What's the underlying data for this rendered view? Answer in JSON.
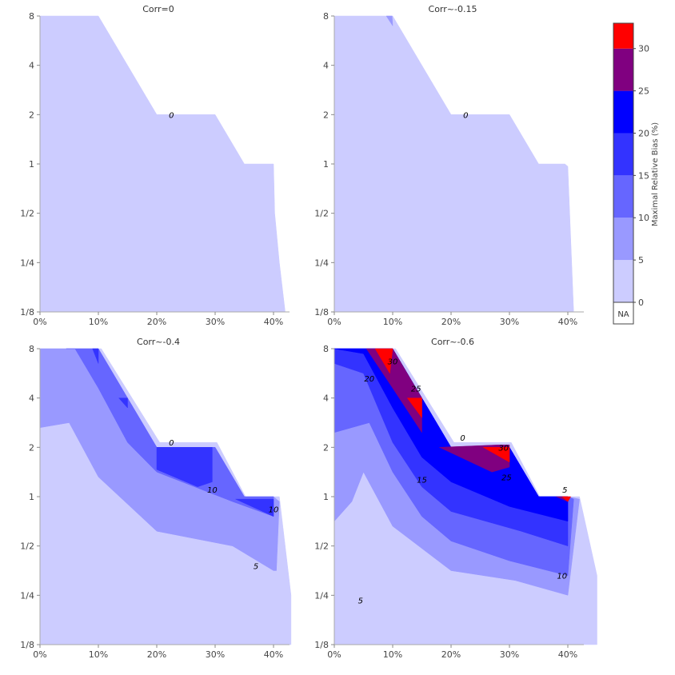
{
  "chart_data": {
    "type": "contour",
    "colorbar": {
      "title": "Maximal Relative Bias (%)",
      "ticks": [
        "0",
        "5",
        "10",
        "15",
        "20",
        "25",
        "30"
      ],
      "levels": [
        0,
        5,
        10,
        15,
        20,
        25,
        30,
        33
      ],
      "colors": [
        "#ccccff",
        "#9999ff",
        "#6666ff",
        "#3333ff",
        "#0000ff",
        "#800080",
        "#ff0000"
      ],
      "na_label": "NA",
      "na_color": "#ffffff"
    },
    "x_ticks": [
      "0%",
      "10%",
      "20%",
      "30%",
      "40%"
    ],
    "x_tick_values": [
      0,
      10,
      20,
      30,
      40
    ],
    "y_ticks": [
      "1/8",
      "1/4",
      "1/2",
      "1",
      "2",
      "4",
      "8"
    ],
    "y_tick_values": [
      -3,
      -2,
      -1,
      0,
      1,
      2,
      3
    ],
    "panels": [
      {
        "title": "Corr=0",
        "regions": [
          {
            "level": 0,
            "points": [
              [
                0,
                3
              ],
              [
                10,
                3
              ],
              [
                20,
                1
              ],
              [
                30,
                1
              ],
              [
                35,
                0
              ],
              [
                40,
                0
              ],
              [
                40.2,
                -1
              ],
              [
                41,
                -2
              ],
              [
                42,
                -3
              ],
              [
                0,
                -3
              ]
            ]
          }
        ],
        "labels": [
          {
            "text": "0",
            "x": 22.5,
            "y": 1
          }
        ]
      },
      {
        "title": "Corr~-0.15",
        "regions": [
          {
            "level": 0,
            "points": [
              [
                0,
                3
              ],
              [
                10,
                3
              ],
              [
                20,
                1
              ],
              [
                30,
                1
              ],
              [
                35,
                0
              ],
              [
                39.5,
                0
              ],
              [
                40,
                -0.05
              ],
              [
                41,
                -3
              ],
              [
                0,
                -3
              ]
            ]
          },
          {
            "level": 1,
            "points": [
              [
                8.9,
                3
              ],
              [
                9.9,
                3
              ],
              [
                10,
                2.8
              ]
            ]
          }
        ],
        "labels": [
          {
            "text": "0",
            "x": 22.5,
            "y": 1
          }
        ]
      },
      {
        "title": "Corr~-0.4",
        "regions": [
          {
            "level": 0,
            "points": [
              [
                0,
                3
              ],
              [
                10.5,
                3
              ],
              [
                20.5,
                1.1
              ],
              [
                30.3,
                1.1
              ],
              [
                35.2,
                0
              ],
              [
                41,
                0
              ],
              [
                43,
                -2
              ],
              [
                43,
                -3
              ],
              [
                0,
                -3
              ]
            ]
          },
          {
            "level": 1,
            "points": [
              [
                0,
                3
              ],
              [
                10,
                3
              ],
              [
                20,
                1
              ],
              [
                30,
                1
              ],
              [
                35,
                0
              ],
              [
                40,
                0
              ],
              [
                41,
                -0.1
              ],
              [
                40.5,
                -1.5
              ],
              [
                40,
                -1.5
              ],
              [
                33,
                -1
              ],
              [
                20,
                -0.7
              ],
              [
                10,
                0.4
              ],
              [
                5,
                1.5
              ],
              [
                0,
                1.4
              ]
            ]
          },
          {
            "level": 2,
            "points": [
              [
                4.5,
                3
              ],
              [
                10,
                3
              ],
              [
                20,
                1
              ],
              [
                30,
                1
              ],
              [
                35,
                0
              ],
              [
                40,
                0
              ],
              [
                40,
                -0.4
              ],
              [
                33,
                -0.1
              ],
              [
                20,
                0.5
              ],
              [
                15,
                1.1
              ],
              [
                10,
                2.2
              ],
              [
                6,
                3
              ]
            ]
          },
          {
            "level": 3,
            "points": [
              [
                9,
                3
              ],
              [
                10,
                2.7
              ],
              [
                10,
                3
              ]
            ]
          },
          {
            "level": 3,
            "points": [
              [
                13.5,
                2
              ],
              [
                15,
                1.8
              ],
              [
                15,
                2
              ]
            ]
          },
          {
            "level": 3,
            "points": [
              [
                20,
                1
              ],
              [
                29.5,
                1
              ],
              [
                29.5,
                0.3
              ],
              [
                27,
                0.2
              ],
              [
                20,
                0.55
              ]
            ]
          },
          {
            "level": 3,
            "points": [
              [
                33.5,
                -0.05
              ],
              [
                40,
                -0.05
              ],
              [
                40,
                -0.4
              ]
            ]
          }
        ],
        "labels": [
          {
            "text": "0",
            "x": 22.5,
            "y": 1.1
          },
          {
            "text": "10",
            "x": 29.5,
            "y": 0.15
          },
          {
            "text": "10",
            "x": 40,
            "y": -0.25
          },
          {
            "text": "5",
            "x": 37,
            "y": -1.4
          }
        ]
      },
      {
        "title": "Corr~-0.6",
        "regions": [
          {
            "level": 0,
            "points": [
              [
                0,
                3
              ],
              [
                10.5,
                3
              ],
              [
                20.5,
                1.1
              ],
              [
                30.3,
                1.1
              ],
              [
                35.2,
                0
              ],
              [
                42,
                0
              ],
              [
                45,
                -1.6
              ],
              [
                45,
                -3
              ],
              [
                0,
                -3
              ]
            ]
          },
          {
            "level": 1,
            "points": [
              [
                0,
                3
              ],
              [
                10,
                3
              ],
              [
                20,
                1
              ],
              [
                30,
                1
              ],
              [
                35,
                0
              ],
              [
                40,
                0
              ],
              [
                42,
                -0.05
              ],
              [
                40,
                -2
              ],
              [
                31,
                -1.7
              ],
              [
                20,
                -1.5
              ],
              [
                10,
                -0.6
              ],
              [
                5,
                0.5
              ],
              [
                3,
                -0.1
              ],
              [
                0,
                -0.5
              ]
            ]
          },
          {
            "level": 2,
            "points": [
              [
                0,
                3
              ],
              [
                10,
                3
              ],
              [
                20,
                1
              ],
              [
                30,
                1
              ],
              [
                35,
                0
              ],
              [
                40,
                0
              ],
              [
                41,
                -0.05
              ],
              [
                40,
                -1.6
              ],
              [
                30,
                -1.3
              ],
              [
                20,
                -0.9
              ],
              [
                15,
                -0.4
              ],
              [
                10,
                0.5
              ],
              [
                6,
                1.5
              ],
              [
                0,
                1.3
              ]
            ]
          },
          {
            "level": 3,
            "points": [
              [
                0,
                3
              ],
              [
                10,
                3
              ],
              [
                20,
                1
              ],
              [
                30,
                1
              ],
              [
                35,
                0
              ],
              [
                40,
                0
              ],
              [
                40,
                -1
              ],
              [
                32,
                -0.7
              ],
              [
                20,
                -0.3
              ],
              [
                15,
                0.2
              ],
              [
                10,
                1.1
              ],
              [
                5,
                2.5
              ],
              [
                0,
                2.7
              ]
            ]
          },
          {
            "level": 4,
            "points": [
              [
                0,
                3
              ],
              [
                10,
                3
              ],
              [
                20,
                1
              ],
              [
                30,
                1
              ],
              [
                35,
                0
              ],
              [
                40,
                0
              ],
              [
                40,
                -0.5
              ],
              [
                30,
                -0.2
              ],
              [
                20,
                0.3
              ],
              [
                15,
                0.8
              ],
              [
                10,
                1.8
              ],
              [
                5,
                2.9
              ]
            ]
          },
          {
            "level": 5,
            "points": [
              [
                5.5,
                3
              ],
              [
                10,
                3
              ],
              [
                15,
                2
              ],
              [
                15,
                1.3
              ],
              [
                10,
                2.2
              ]
            ]
          },
          {
            "level": 5,
            "points": [
              [
                18,
                1
              ],
              [
                28,
                1.05
              ],
              [
                30,
                1.05
              ],
              [
                30,
                0.6
              ],
              [
                27,
                0.5
              ]
            ]
          },
          {
            "level": 5,
            "points": [
              [
                38,
                0
              ],
              [
                40,
                0
              ],
              [
                40,
                -0.1
              ]
            ]
          },
          {
            "level": 6,
            "points": [
              [
                7,
                3
              ],
              [
                10,
                3
              ],
              [
                9.5,
                2.5
              ]
            ]
          },
          {
            "level": 6,
            "points": [
              [
                12.5,
                2
              ],
              [
                15,
                2
              ],
              [
                15,
                1.6
              ]
            ]
          },
          {
            "level": 6,
            "points": [
              [
                25.5,
                1
              ],
              [
                30,
                1
              ],
              [
                30,
                0.7
              ]
            ]
          },
          {
            "level": 6,
            "points": [
              [
                39,
                0
              ],
              [
                40.5,
                0
              ],
              [
                40,
                -0.1
              ]
            ]
          }
        ],
        "labels": [
          {
            "text": "30",
            "x": 10,
            "y": 2.75
          },
          {
            "text": "25",
            "x": 14,
            "y": 2.2
          },
          {
            "text": "20",
            "x": 6,
            "y": 2.4
          },
          {
            "text": "0",
            "x": 22,
            "y": 1.2
          },
          {
            "text": "30",
            "x": 29,
            "y": 1
          },
          {
            "text": "25",
            "x": 29.5,
            "y": 0.4
          },
          {
            "text": "15",
            "x": 15,
            "y": 0.35
          },
          {
            "text": "5",
            "x": 39.5,
            "y": 0.15
          },
          {
            "text": "10",
            "x": 39,
            "y": -1.6
          },
          {
            "text": "5",
            "x": 4.5,
            "y": -2.1
          }
        ]
      }
    ]
  }
}
